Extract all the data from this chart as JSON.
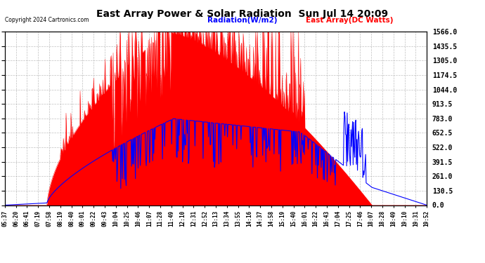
{
  "title": "East Array Power & Solar Radiation  Sun Jul 14 20:09",
  "legend_radiation": "Radiation(W/m2)",
  "legend_east_array": "East Array(DC Watts)",
  "copyright": "Copyright 2024 Cartronics.com",
  "y_max": 1566.0,
  "y_min": 0.0,
  "y_ticks": [
    0.0,
    130.5,
    261.0,
    391.5,
    522.0,
    652.5,
    783.0,
    913.5,
    1044.0,
    1174.5,
    1305.0,
    1435.5,
    1566.0
  ],
  "background_color": "#ffffff",
  "grid_color": "#b0b0b0",
  "radiation_color": "#0000ff",
  "east_array_color": "#ff0000",
  "east_array_fill": "#ff0000",
  "x_labels": [
    "05:37",
    "06:20",
    "06:41",
    "07:19",
    "07:58",
    "08:19",
    "08:40",
    "09:01",
    "09:22",
    "09:43",
    "10:04",
    "10:25",
    "10:46",
    "11:07",
    "11:28",
    "11:49",
    "12:10",
    "12:31",
    "12:52",
    "13:13",
    "13:34",
    "13:55",
    "14:16",
    "14:37",
    "14:58",
    "15:19",
    "15:40",
    "16:01",
    "16:22",
    "16:43",
    "17:04",
    "17:25",
    "17:46",
    "18:07",
    "18:28",
    "18:49",
    "19:10",
    "19:31",
    "19:52"
  ]
}
